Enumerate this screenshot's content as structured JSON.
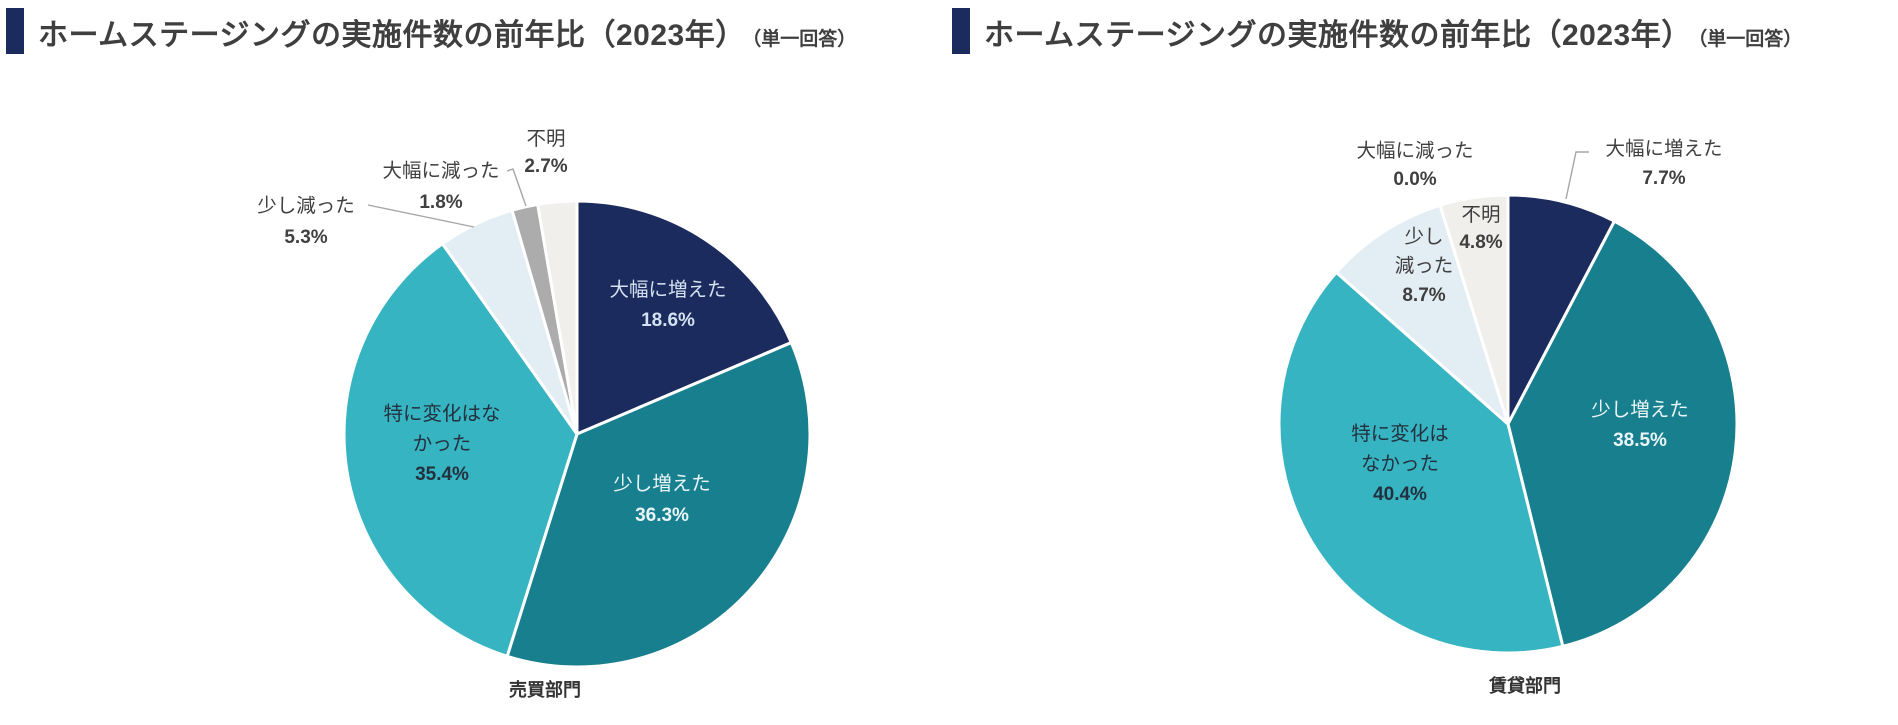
{
  "chart_data": [
    {
      "type": "pie",
      "title": "ホームステージングの実施件数の前年比（2023年）",
      "subtitle": "（単一回答）",
      "series_label": "売買部門",
      "unit": "%",
      "legend_position": "none",
      "categories": [
        "大幅に増えた",
        "少し増えた",
        "特に変化はなかった",
        "少し減った",
        "大幅に減った",
        "不明"
      ],
      "values": [
        18.6,
        36.3,
        35.4,
        5.3,
        1.8,
        2.7
      ],
      "slices": [
        {
          "key": "greatly-increased",
          "name": "大幅に増えた",
          "value": 18.6,
          "pct": "18.6%",
          "color": "#1B2B5E",
          "text_color": "#D3E2F0",
          "placement": "inside",
          "lines": [
            "大幅に増えた"
          ]
        },
        {
          "key": "slightly-increased",
          "name": "少し増えた",
          "value": 36.3,
          "pct": "36.3%",
          "color": "#187F8E",
          "text_color": "#E9F5F8",
          "placement": "inside",
          "lines": [
            "少し増えた"
          ]
        },
        {
          "key": "no-change",
          "name": "特に変化はなかった",
          "value": 35.4,
          "pct": "35.4%",
          "color": "#37B4C1",
          "text_color": "#23313F",
          "placement": "inside",
          "lines": [
            "特に変化はな",
            "かった"
          ]
        },
        {
          "key": "slightly-decreased",
          "name": "少し減った",
          "value": 5.3,
          "pct": "5.3%",
          "color": "#E3EDF4",
          "text_color": "#3F3F3F",
          "placement": "outside",
          "lines": [
            "少し減った"
          ]
        },
        {
          "key": "greatly-decreased",
          "name": "大幅に減った",
          "value": 1.8,
          "pct": "1.8%",
          "color": "#ACACAC",
          "text_color": "#3F3F3F",
          "placement": "outside",
          "lines": [
            "大幅に減った"
          ]
        },
        {
          "key": "unknown",
          "name": "不明",
          "value": 2.7,
          "pct": "2.7%",
          "color": "#F0EFEC",
          "text_color": "#3F3F3F",
          "placement": "outside",
          "lines": [
            "不明"
          ]
        }
      ]
    },
    {
      "type": "pie",
      "title": "ホームステージングの実施件数の前年比（2023年）",
      "subtitle": "（単一回答）",
      "series_label": "賃貸部門",
      "unit": "%",
      "legend_position": "none",
      "categories": [
        "大幅に増えた",
        "少し増えた",
        "特に変化はなかった",
        "少し減った",
        "大幅に減った",
        "不明"
      ],
      "values": [
        7.7,
        38.5,
        40.4,
        8.7,
        0.0,
        4.8
      ],
      "slices": [
        {
          "key": "greatly-increased",
          "name": "大幅に増えた",
          "value": 7.7,
          "pct": "7.7%",
          "color": "#1B2B5E",
          "text_color": "#D3E2F0",
          "placement": "outside",
          "lines": [
            "大幅に増えた"
          ]
        },
        {
          "key": "slightly-increased",
          "name": "少し増えた",
          "value": 38.5,
          "pct": "38.5%",
          "color": "#187F8E",
          "text_color": "#E9F5F8",
          "placement": "inside",
          "lines": [
            "少し増えた"
          ]
        },
        {
          "key": "no-change",
          "name": "特に変化はなかった",
          "value": 40.4,
          "pct": "40.4%",
          "color": "#37B4C1",
          "text_color": "#23313F",
          "placement": "inside",
          "lines": [
            "特に変化は",
            "なかった"
          ]
        },
        {
          "key": "slightly-decreased",
          "name": "少し減った",
          "value": 8.7,
          "pct": "8.7%",
          "color": "#E3EDF4",
          "text_color": "#3F3F3F",
          "placement": "inside",
          "lines": [
            "少し",
            "減った"
          ]
        },
        {
          "key": "greatly-decreased",
          "name": "大幅に減った",
          "value": 0.0,
          "pct": "0.0%",
          "color": "#ACACAC",
          "text_color": "#3F3F3F",
          "placement": "outside",
          "lines": [
            "大幅に減った"
          ]
        },
        {
          "key": "unknown",
          "name": "不明",
          "value": 4.8,
          "pct": "4.8%",
          "color": "#F0EFEC",
          "text_color": "#3F3F3F",
          "placement": "inside",
          "lines": [
            "不明"
          ]
        }
      ]
    }
  ],
  "styles": {
    "accent_color": "#1B2B5E",
    "title_color": "#3F3F3F",
    "outside_label_color": "#404040",
    "leader_line_color": "#A6A6A6",
    "slice_border_color": "#FFFFFF"
  }
}
